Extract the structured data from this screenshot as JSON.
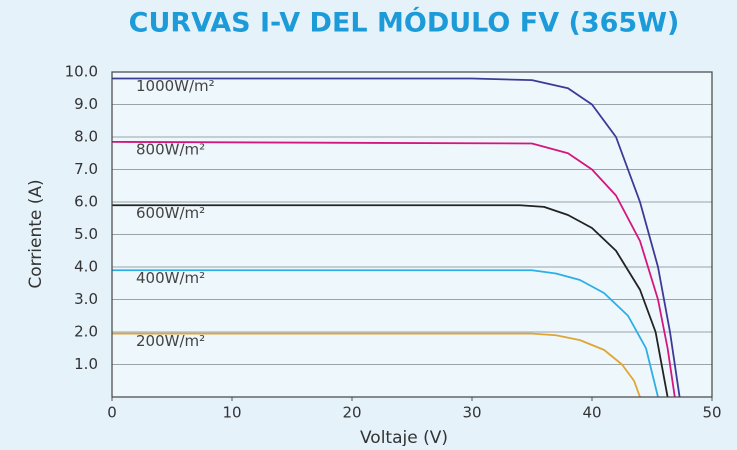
{
  "chart_data": {
    "type": "line",
    "title": "CURVAS I-V DEL MÓDULO FV (365W)",
    "x_label": "Voltaje (V)",
    "y_label": "Corriente (A)",
    "xlim": [
      0,
      50
    ],
    "ylim": [
      0,
      10
    ],
    "xticks": [
      0,
      10,
      20,
      30,
      40,
      50
    ],
    "yticks": [
      {
        "value": 1,
        "label": "1.0"
      },
      {
        "value": 2,
        "label": "2.0"
      },
      {
        "value": 3,
        "label": "3.0"
      },
      {
        "value": 4,
        "label": "4.0"
      },
      {
        "value": 5,
        "label": "5.0"
      },
      {
        "value": 6,
        "label": "6.0"
      },
      {
        "value": 7,
        "label": "7.0"
      },
      {
        "value": 8,
        "label": "8.0"
      },
      {
        "value": 9,
        "label": "9.0"
      },
      {
        "value": 10,
        "label": "10.0"
      }
    ],
    "grid": true,
    "series": [
      {
        "name": "1000W/m²",
        "color": "#3b3b96",
        "x": [
          0,
          30,
          35,
          38,
          40,
          42,
          44,
          45.5,
          46.5,
          47.3
        ],
        "values": [
          9.8,
          9.8,
          9.75,
          9.5,
          9.0,
          8.0,
          6.0,
          4.0,
          2.0,
          0
        ]
      },
      {
        "name": "800W/m²",
        "color": "#d4167f",
        "x": [
          0,
          35,
          38,
          40,
          42,
          44,
          45.5,
          46.3,
          46.9
        ],
        "values": [
          7.85,
          7.8,
          7.5,
          7.0,
          6.2,
          4.8,
          3.0,
          1.5,
          0
        ]
      },
      {
        "name": "600W/m²",
        "color": "#222222",
        "x": [
          0,
          34,
          36,
          38,
          40,
          42,
          44,
          45.3,
          46.3
        ],
        "values": [
          5.9,
          5.9,
          5.85,
          5.6,
          5.2,
          4.5,
          3.3,
          2.0,
          0
        ]
      },
      {
        "name": "400W/m²",
        "color": "#2caee6",
        "x": [
          0,
          35,
          37,
          39,
          41,
          43,
          44.5,
          45.5
        ],
        "values": [
          3.9,
          3.9,
          3.8,
          3.6,
          3.2,
          2.5,
          1.5,
          0
        ]
      },
      {
        "name": "200W/m²",
        "color": "#e0a535",
        "x": [
          0,
          35,
          37,
          39,
          41,
          42.5,
          43.5,
          44
        ],
        "values": [
          1.95,
          1.95,
          1.9,
          1.75,
          1.45,
          1.0,
          0.5,
          0
        ]
      }
    ]
  }
}
